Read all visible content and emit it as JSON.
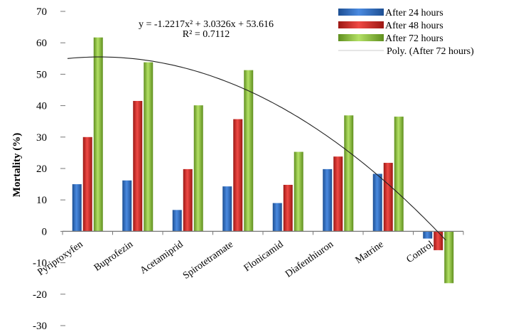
{
  "chart_data": {
    "type": "bar",
    "ylabel": "Mortality (%)",
    "xlabel": "",
    "ylim": [
      -30,
      70
    ],
    "yticks": [
      70,
      60,
      50,
      40,
      30,
      20,
      10,
      0,
      -10,
      -20,
      -30
    ],
    "grid": false,
    "legend_position": "top-right",
    "categories": [
      "Pyriproxyfen",
      "Buprofezin",
      "Acetamiprid",
      "Spirotetramate",
      "Flonicamid",
      "Diafenthiuron",
      "Matrine",
      "Control"
    ],
    "series": [
      {
        "name": "After 24 hours",
        "color": "#2f6fc4",
        "values": [
          15,
          16.2,
          6.8,
          14.3,
          9,
          19.8,
          18.3,
          -2.3
        ]
      },
      {
        "name": "After 48 hours",
        "color": "#d42a26",
        "values": [
          30,
          41.5,
          19.8,
          35.7,
          14.8,
          23.8,
          21.8,
          -6
        ]
      },
      {
        "name": "After 72 hours",
        "color": "#8ec63f",
        "values": [
          61.7,
          53.8,
          40.1,
          51.3,
          25.3,
          36.9,
          36.5,
          -16.5
        ]
      }
    ],
    "trendline": {
      "name": "Poly. (After 72 hours)",
      "equation": "y = -1.2217x² + 3.0326x + 53.616",
      "r_squared": "R² = 0.7112",
      "coefficients": [
        -1.2217,
        3.0326,
        53.616
      ]
    }
  }
}
